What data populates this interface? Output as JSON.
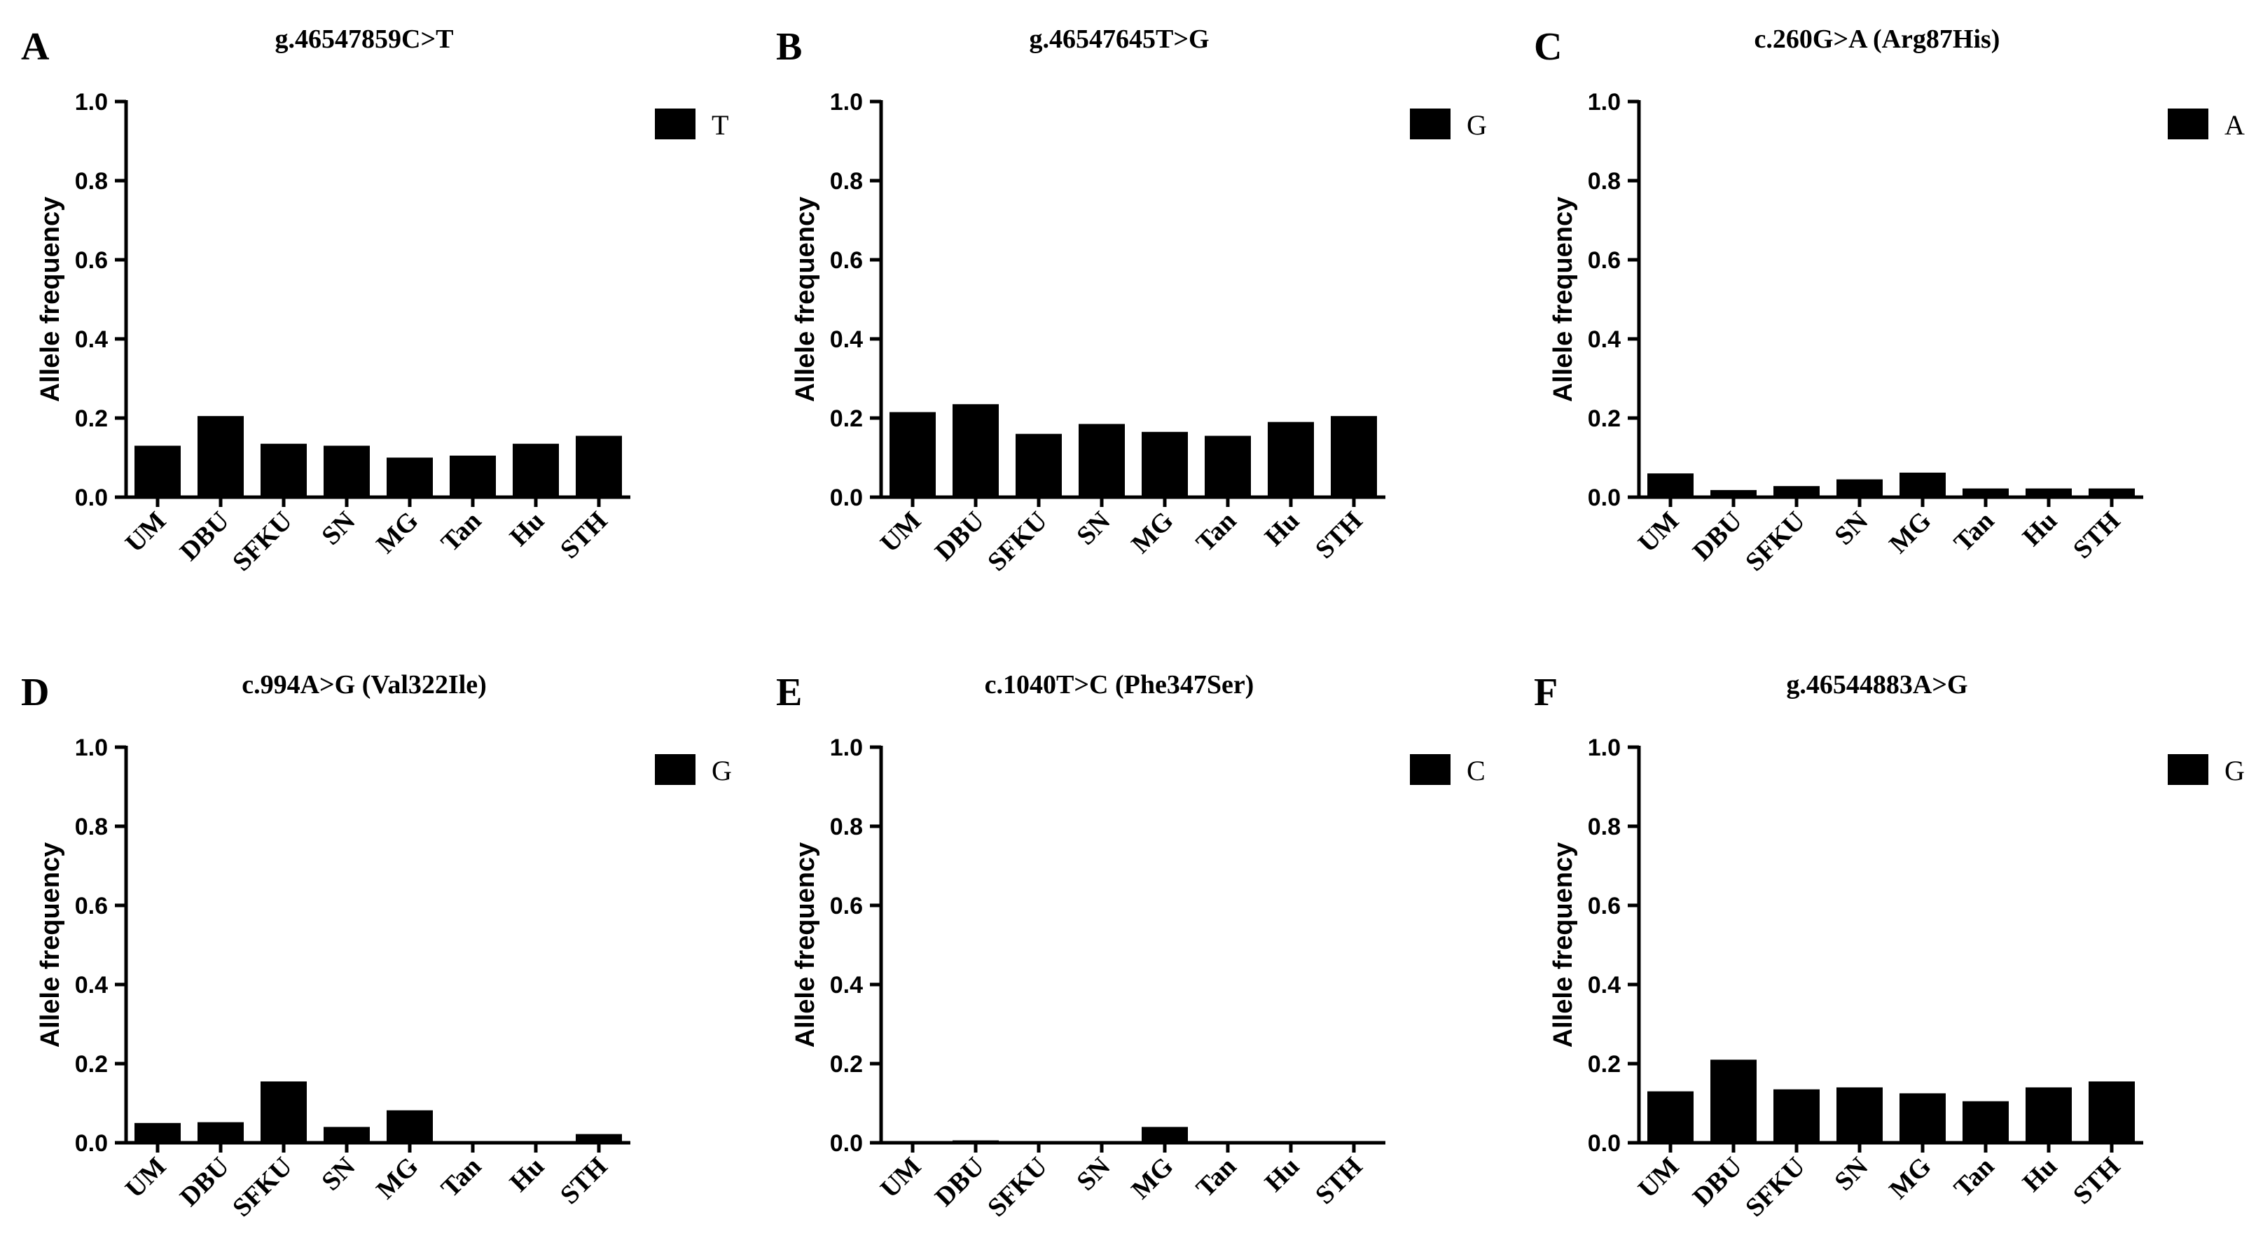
{
  "chart_data": [
    {
      "type": "bar",
      "panel": "A",
      "title": "g.46547859C>T",
      "ylabel": "Allele frequency",
      "ylim": [
        0,
        1.0
      ],
      "yticks": [
        "0.0",
        "0.2",
        "0.4",
        "0.6",
        "0.8",
        "1.0"
      ],
      "categories": [
        "UM",
        "DBU",
        "SFKU",
        "SN",
        "MG",
        "Tan",
        "Hu",
        "STH"
      ],
      "values": [
        0.13,
        0.205,
        0.135,
        0.13,
        0.1,
        0.105,
        0.135,
        0.155
      ],
      "legend": "T"
    },
    {
      "type": "bar",
      "panel": "B",
      "title": "g.46547645T>G",
      "ylabel": "Allele frequency",
      "ylim": [
        0,
        1.0
      ],
      "yticks": [
        "0.0",
        "0.2",
        "0.4",
        "0.6",
        "0.8",
        "1.0"
      ],
      "categories": [
        "UM",
        "DBU",
        "SFKU",
        "SN",
        "MG",
        "Tan",
        "Hu",
        "STH"
      ],
      "values": [
        0.215,
        0.235,
        0.16,
        0.185,
        0.165,
        0.155,
        0.19,
        0.205
      ],
      "legend": "G"
    },
    {
      "type": "bar",
      "panel": "C",
      "title": "c.260G>A (Arg87His)",
      "ylabel": "Allele frequency",
      "ylim": [
        0,
        1.0
      ],
      "yticks": [
        "0.0",
        "0.2",
        "0.4",
        "0.6",
        "0.8",
        "1.0"
      ],
      "categories": [
        "UM",
        "DBU",
        "SFKU",
        "SN",
        "MG",
        "Tan",
        "Hu",
        "STH"
      ],
      "values": [
        0.06,
        0.018,
        0.028,
        0.045,
        0.062,
        0.022,
        0.022,
        0.022
      ],
      "legend": "A"
    },
    {
      "type": "bar",
      "panel": "D",
      "title": "c.994A>G (Val322Ile)",
      "ylabel": "Allele frequency",
      "ylim": [
        0,
        1.0
      ],
      "yticks": [
        "0.0",
        "0.2",
        "0.4",
        "0.6",
        "0.8",
        "1.0"
      ],
      "categories": [
        "UM",
        "DBU",
        "SFKU",
        "SN",
        "MG",
        "Tan",
        "Hu",
        "STH"
      ],
      "values": [
        0.05,
        0.052,
        0.155,
        0.04,
        0.082,
        0,
        0,
        0.022
      ],
      "legend": "G"
    },
    {
      "type": "bar",
      "panel": "E",
      "title": "c.1040T>C (Phe347Ser)",
      "ylabel": "Allele frequency",
      "ylim": [
        0,
        1.0
      ],
      "yticks": [
        "0.0",
        "0.2",
        "0.4",
        "0.6",
        "0.8",
        "1.0"
      ],
      "categories": [
        "UM",
        "DBU",
        "SFKU",
        "SN",
        "MG",
        "Tan",
        "Hu",
        "STH"
      ],
      "values": [
        0,
        0.006,
        0,
        0,
        0.04,
        0,
        0,
        0
      ],
      "legend": "C"
    },
    {
      "type": "bar",
      "panel": "F",
      "title": "g.46544883A>G",
      "ylabel": "Allele frequency",
      "ylim": [
        0,
        1.0
      ],
      "yticks": [
        "0.0",
        "0.2",
        "0.4",
        "0.6",
        "0.8",
        "1.0"
      ],
      "categories": [
        "UM",
        "DBU",
        "SFKU",
        "SN",
        "MG",
        "Tan",
        "Hu",
        "STH"
      ],
      "values": [
        0.13,
        0.21,
        0.135,
        0.14,
        0.125,
        0.105,
        0.14,
        0.155
      ],
      "legend": "G"
    }
  ]
}
